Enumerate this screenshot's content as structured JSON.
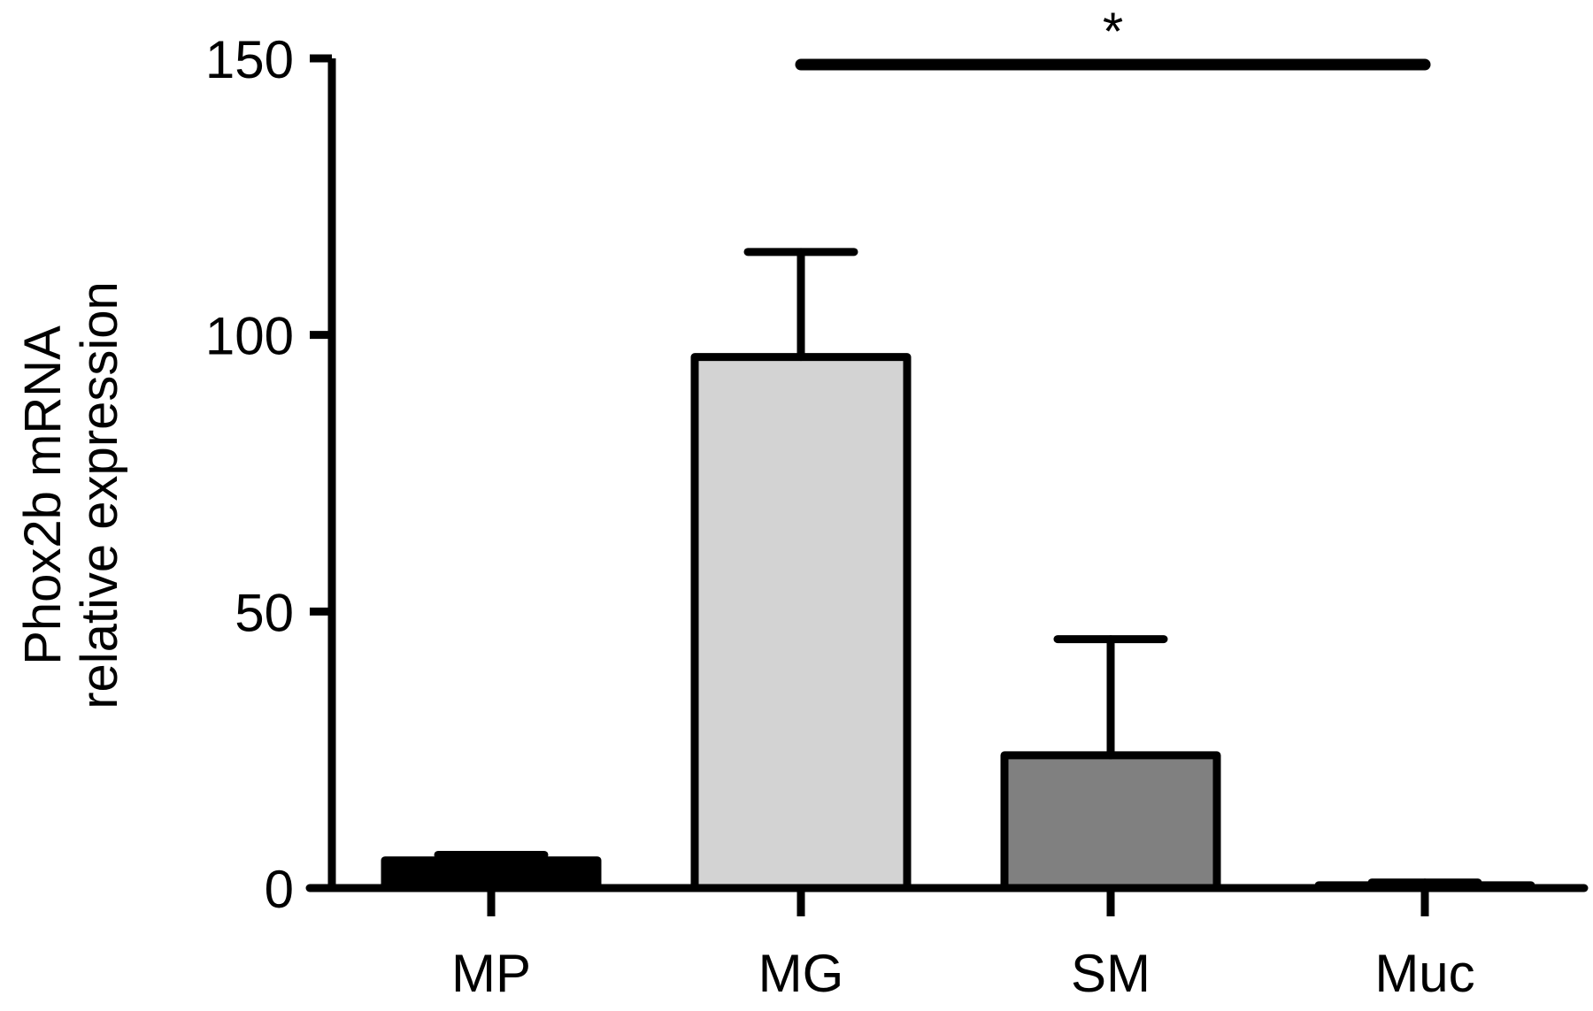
{
  "chart_data": {
    "type": "bar",
    "title": "",
    "xlabel": "",
    "ylabel_lines": [
      "Phox2b mRNA",
      "relative expression"
    ],
    "categories": [
      "MP",
      "MG",
      "SM",
      "Muc"
    ],
    "values": [
      5,
      96,
      24,
      0.5
    ],
    "error_upper": [
      6,
      115,
      45,
      1
    ],
    "bar_colors": [
      "#000000",
      "#d3d3d3",
      "#808080",
      "#000000"
    ],
    "ylim": [
      0,
      150
    ],
    "yticks": [
      0,
      50,
      100,
      150
    ],
    "yticklabels": [
      "0",
      "50",
      "100",
      "150"
    ],
    "grid": false,
    "legend": "none",
    "significance": [
      {
        "from": "MG",
        "to": "Muc",
        "y": 150,
        "label": "*"
      }
    ]
  }
}
